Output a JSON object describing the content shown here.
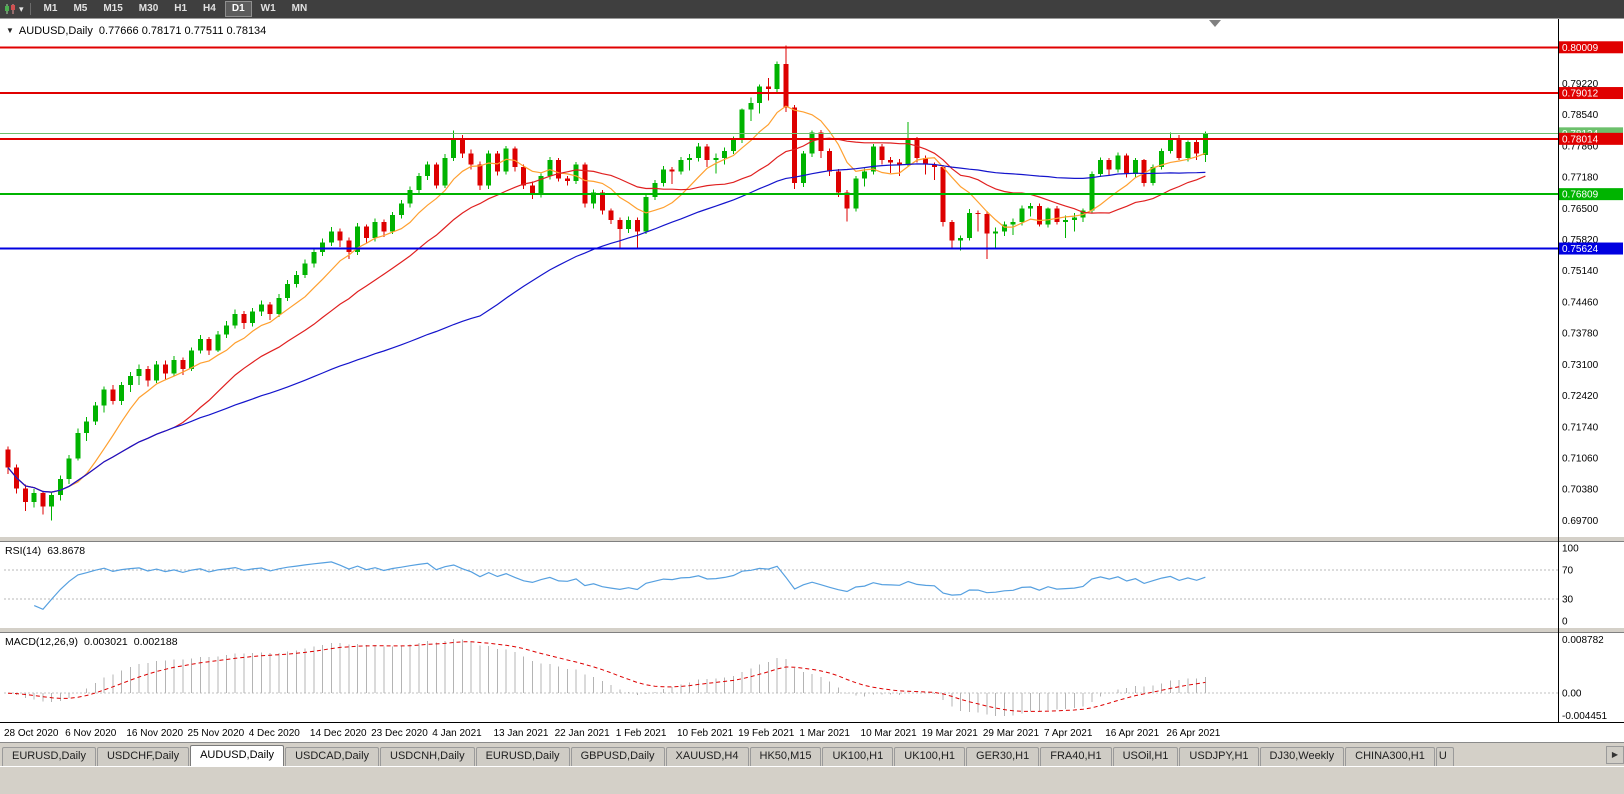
{
  "toolbar": {
    "timeframes": [
      "M1",
      "M5",
      "M15",
      "M30",
      "H1",
      "H4",
      "D1",
      "W1",
      "MN"
    ],
    "active": "D1",
    "dropdown_icon": "▾"
  },
  "header": {
    "collapse_icon": "▼",
    "title": "AUDUSD,Daily",
    "ohlc": "0.77666 0.78171 0.77511 0.78134"
  },
  "tabbar": {
    "scroll_right_icon": "▶",
    "tabs": [
      {
        "label": "EURUSD,Daily"
      },
      {
        "label": "USDCHF,Daily"
      },
      {
        "label": "AUDUSD,Daily",
        "active": true
      },
      {
        "label": "USDCAD,Daily"
      },
      {
        "label": "USDCNH,Daily"
      },
      {
        "label": "EURUSD,Daily"
      },
      {
        "label": "GBPUSD,Daily"
      },
      {
        "label": "XAUUSD,H4"
      },
      {
        "label": "HK50,M15"
      },
      {
        "label": "UK100,H1"
      },
      {
        "label": "UK100,H1"
      },
      {
        "label": "GER30,H1"
      },
      {
        "label": "FRA40,H1"
      },
      {
        "label": "USOil,H1"
      },
      {
        "label": "USDJPY,H1"
      },
      {
        "label": "DJ30,Weekly"
      },
      {
        "label": "CHINA300,H1"
      },
      {
        "label": "U",
        "partial": true
      }
    ]
  },
  "chart_data": {
    "type": "candlestick",
    "symbol": "AUDUSD",
    "timeframe": "Daily",
    "ylim": [
      0.6936,
      0.8056
    ],
    "y_axis_labels": [
      "0.79220",
      "0.78540",
      "0.77860",
      "0.77180",
      "0.76500",
      "0.75820",
      "0.75140",
      "0.74460",
      "0.73780",
      "0.73100",
      "0.72420",
      "0.71740",
      "0.71060",
      "0.70380",
      "0.69700"
    ],
    "x_labels": [
      "28 Oct 2020",
      "6 Nov 2020",
      "16 Nov 2020",
      "25 Nov 2020",
      "4 Dec 2020",
      "14 Dec 2020",
      "23 Dec 2020",
      "4 Jan 2021",
      "13 Jan 2021",
      "22 Jan 2021",
      "1 Feb 2021",
      "10 Feb 2021",
      "19 Feb 2021",
      "1 Mar 2021",
      "10 Mar 2021",
      "19 Mar 2021",
      "29 Mar 2021",
      "7 Apr 2021",
      "16 Apr 2021",
      "26 Apr 2021"
    ],
    "x_label_every": 7,
    "colors": {
      "bull": "#00b300",
      "bear": "#dd0000"
    },
    "horizontal_lines": [
      {
        "price": 0.80009,
        "label": "0.80009",
        "color": "#e00000"
      },
      {
        "price": 0.79012,
        "label": "0.79012",
        "color": "#e00000"
      },
      {
        "price": 0.78014,
        "label": "0.78014",
        "color": "#e00000"
      },
      {
        "price": 0.76809,
        "label": "0.76809",
        "color": "#00b400"
      },
      {
        "price": 0.75624,
        "label": "0.75624",
        "color": "#0000e0"
      }
    ],
    "bid_line": {
      "price": 0.78134,
      "label": "0.78134",
      "color": "#6cc06c"
    },
    "indicators": {
      "moving_averages": [
        {
          "period": 8,
          "color": "#ffa030",
          "name": "ma-fast"
        },
        {
          "period": 20,
          "color": "#e02020",
          "name": "ma-medium"
        },
        {
          "period": 55,
          "color": "#1414cc",
          "name": "ma-slow"
        }
      ],
      "rsi": {
        "label": "RSI(14)",
        "value": "63.8678",
        "levels": [
          100,
          70,
          30,
          0
        ],
        "color": "#56a0e0"
      },
      "macd": {
        "label": "MACD(12,26,9)",
        "value_main": "0.003021",
        "value_signal": "0.002188",
        "axis_labels": [
          "0.008782",
          "0.00",
          "-0.004451"
        ],
        "histogram_color": "#b4b4b4",
        "signal_color": "#dd0000"
      }
    },
    "ohlc": [
      [
        0.7125,
        0.7131,
        0.7071,
        0.7085
      ],
      [
        0.7085,
        0.7092,
        0.7029,
        0.704
      ],
      [
        0.704,
        0.7048,
        0.6991,
        0.701
      ],
      [
        0.701,
        0.7038,
        0.6998,
        0.703
      ],
      [
        0.703,
        0.7034,
        0.6983,
        0.7
      ],
      [
        0.7,
        0.7031,
        0.697,
        0.7025
      ],
      [
        0.7025,
        0.7068,
        0.7013,
        0.706
      ],
      [
        0.706,
        0.7112,
        0.7049,
        0.7105
      ],
      [
        0.7105,
        0.717,
        0.71,
        0.716
      ],
      [
        0.716,
        0.7195,
        0.7143,
        0.7185
      ],
      [
        0.7185,
        0.7228,
        0.7178,
        0.722
      ],
      [
        0.722,
        0.7262,
        0.7205,
        0.7255
      ],
      [
        0.7255,
        0.7265,
        0.7222,
        0.723
      ],
      [
        0.723,
        0.7272,
        0.7221,
        0.7265
      ],
      [
        0.7265,
        0.7293,
        0.725,
        0.7285
      ],
      [
        0.7285,
        0.731,
        0.7265,
        0.73
      ],
      [
        0.73,
        0.7306,
        0.7262,
        0.7275
      ],
      [
        0.7275,
        0.7317,
        0.7269,
        0.731
      ],
      [
        0.731,
        0.7318,
        0.7276,
        0.729
      ],
      [
        0.729,
        0.7328,
        0.7285,
        0.732
      ],
      [
        0.732,
        0.7325,
        0.7287,
        0.73
      ],
      [
        0.73,
        0.7347,
        0.7296,
        0.734
      ],
      [
        0.734,
        0.7374,
        0.7334,
        0.7365
      ],
      [
        0.7365,
        0.737,
        0.733,
        0.734
      ],
      [
        0.734,
        0.7383,
        0.7337,
        0.7375
      ],
      [
        0.7375,
        0.7405,
        0.7367,
        0.7395
      ],
      [
        0.7395,
        0.743,
        0.7388,
        0.742
      ],
      [
        0.742,
        0.7426,
        0.7387,
        0.74
      ],
      [
        0.74,
        0.7433,
        0.7393,
        0.7425
      ],
      [
        0.7425,
        0.7449,
        0.7415,
        0.744
      ],
      [
        0.744,
        0.7446,
        0.7407,
        0.742
      ],
      [
        0.742,
        0.7463,
        0.7413,
        0.7455
      ],
      [
        0.7455,
        0.7494,
        0.7448,
        0.7485
      ],
      [
        0.7485,
        0.7513,
        0.7477,
        0.7505
      ],
      [
        0.7505,
        0.7539,
        0.7498,
        0.753
      ],
      [
        0.753,
        0.7564,
        0.7521,
        0.7555
      ],
      [
        0.7555,
        0.7584,
        0.7546,
        0.7575
      ],
      [
        0.7575,
        0.7609,
        0.7568,
        0.76
      ],
      [
        0.76,
        0.7606,
        0.7566,
        0.758
      ],
      [
        0.758,
        0.7586,
        0.754,
        0.7555
      ],
      [
        0.7555,
        0.7618,
        0.7548,
        0.761
      ],
      [
        0.761,
        0.7615,
        0.7573,
        0.7585
      ],
      [
        0.7585,
        0.7628,
        0.7578,
        0.762
      ],
      [
        0.762,
        0.7626,
        0.7588,
        0.76
      ],
      [
        0.76,
        0.7642,
        0.7594,
        0.7635
      ],
      [
        0.7635,
        0.7668,
        0.7628,
        0.766
      ],
      [
        0.766,
        0.7698,
        0.7652,
        0.769
      ],
      [
        0.769,
        0.7727,
        0.7683,
        0.772
      ],
      [
        0.772,
        0.7752,
        0.7712,
        0.7745
      ],
      [
        0.7745,
        0.775,
        0.7693,
        0.77
      ],
      [
        0.77,
        0.7768,
        0.7694,
        0.776
      ],
      [
        0.776,
        0.782,
        0.7753,
        0.78
      ],
      [
        0.78,
        0.781,
        0.776,
        0.777
      ],
      [
        0.777,
        0.7778,
        0.7735,
        0.7745
      ],
      [
        0.7745,
        0.7752,
        0.769,
        0.77
      ],
      [
        0.77,
        0.7776,
        0.7692,
        0.777
      ],
      [
        0.777,
        0.7775,
        0.7722,
        0.773
      ],
      [
        0.773,
        0.7786,
        0.7724,
        0.778
      ],
      [
        0.778,
        0.7785,
        0.773,
        0.774
      ],
      [
        0.774,
        0.7746,
        0.7692,
        0.77
      ],
      [
        0.77,
        0.7708,
        0.767,
        0.768
      ],
      [
        0.768,
        0.7726,
        0.7674,
        0.772
      ],
      [
        0.772,
        0.7762,
        0.7713,
        0.7755
      ],
      [
        0.7755,
        0.776,
        0.7708,
        0.7715
      ],
      [
        0.7715,
        0.772,
        0.77,
        0.771
      ],
      [
        0.771,
        0.7751,
        0.7703,
        0.7745
      ],
      [
        0.7745,
        0.775,
        0.7652,
        0.766
      ],
      [
        0.766,
        0.7691,
        0.765,
        0.7685
      ],
      [
        0.7685,
        0.769,
        0.7637,
        0.7645
      ],
      [
        0.7645,
        0.765,
        0.7616,
        0.7625
      ],
      [
        0.7625,
        0.763,
        0.7565,
        0.7605
      ],
      [
        0.7605,
        0.7632,
        0.7596,
        0.7625
      ],
      [
        0.7625,
        0.763,
        0.756,
        0.76
      ],
      [
        0.76,
        0.7682,
        0.7594,
        0.7675
      ],
      [
        0.7675,
        0.7712,
        0.7668,
        0.7705
      ],
      [
        0.7705,
        0.7742,
        0.7698,
        0.7735
      ],
      [
        0.7735,
        0.774,
        0.7703,
        0.773
      ],
      [
        0.773,
        0.7762,
        0.7724,
        0.7755
      ],
      [
        0.7755,
        0.7768,
        0.7732,
        0.776
      ],
      [
        0.776,
        0.7792,
        0.7752,
        0.7785
      ],
      [
        0.7785,
        0.779,
        0.774,
        0.7755
      ],
      [
        0.7755,
        0.777,
        0.7726,
        0.776
      ],
      [
        0.776,
        0.7783,
        0.7745,
        0.7775
      ],
      [
        0.7775,
        0.7806,
        0.7768,
        0.78
      ],
      [
        0.78,
        0.7868,
        0.7792,
        0.7865
      ],
      [
        0.7865,
        0.7892,
        0.784,
        0.788
      ],
      [
        0.788,
        0.792,
        0.7857,
        0.7915
      ],
      [
        0.7915,
        0.7934,
        0.7885,
        0.791
      ],
      [
        0.791,
        0.797,
        0.79,
        0.7965
      ],
      [
        0.7965,
        0.8005,
        0.786,
        0.787
      ],
      [
        0.787,
        0.7875,
        0.7692,
        0.7705
      ],
      [
        0.7705,
        0.7775,
        0.7697,
        0.777
      ],
      [
        0.777,
        0.782,
        0.7762,
        0.7815
      ],
      [
        0.7815,
        0.7821,
        0.776,
        0.7775
      ],
      [
        0.7775,
        0.778,
        0.772,
        0.773
      ],
      [
        0.773,
        0.7736,
        0.7675,
        0.7685
      ],
      [
        0.7685,
        0.769,
        0.7621,
        0.765
      ],
      [
        0.765,
        0.772,
        0.7643,
        0.7715
      ],
      [
        0.7715,
        0.7737,
        0.7698,
        0.773
      ],
      [
        0.773,
        0.779,
        0.7724,
        0.7785
      ],
      [
        0.7785,
        0.779,
        0.7745,
        0.7755
      ],
      [
        0.7755,
        0.7762,
        0.7727,
        0.775
      ],
      [
        0.775,
        0.7757,
        0.772,
        0.7745
      ],
      [
        0.7745,
        0.7838,
        0.774,
        0.78
      ],
      [
        0.78,
        0.7805,
        0.775,
        0.776
      ],
      [
        0.776,
        0.7765,
        0.7724,
        0.7745
      ],
      [
        0.7745,
        0.775,
        0.7712,
        0.774
      ],
      [
        0.774,
        0.7744,
        0.761,
        0.762
      ],
      [
        0.762,
        0.7625,
        0.7565,
        0.758
      ],
      [
        0.758,
        0.7591,
        0.7558,
        0.7585
      ],
      [
        0.7585,
        0.7648,
        0.758,
        0.764
      ],
      [
        0.764,
        0.7645,
        0.76,
        0.7638
      ],
      [
        0.7638,
        0.7644,
        0.754,
        0.7595
      ],
      [
        0.7595,
        0.7608,
        0.7563,
        0.76
      ],
      [
        0.76,
        0.7621,
        0.759,
        0.7615
      ],
      [
        0.7615,
        0.7628,
        0.7592,
        0.762
      ],
      [
        0.762,
        0.7656,
        0.7613,
        0.765
      ],
      [
        0.765,
        0.7662,
        0.7632,
        0.7655
      ],
      [
        0.7655,
        0.766,
        0.761,
        0.7615
      ],
      [
        0.7615,
        0.7652,
        0.7608,
        0.765
      ],
      [
        0.765,
        0.7655,
        0.7615,
        0.762
      ],
      [
        0.762,
        0.7634,
        0.7585,
        0.7625
      ],
      [
        0.7625,
        0.764,
        0.76,
        0.763
      ],
      [
        0.763,
        0.765,
        0.762,
        0.7645
      ],
      [
        0.7645,
        0.773,
        0.764,
        0.7725
      ],
      [
        0.7725,
        0.7761,
        0.7718,
        0.7755
      ],
      [
        0.7755,
        0.776,
        0.772,
        0.7735
      ],
      [
        0.7735,
        0.7772,
        0.7728,
        0.7765
      ],
      [
        0.7765,
        0.777,
        0.7717,
        0.7725
      ],
      [
        0.7725,
        0.776,
        0.7718,
        0.7755
      ],
      [
        0.7755,
        0.7758,
        0.7698,
        0.7705
      ],
      [
        0.7705,
        0.7745,
        0.77,
        0.774
      ],
      [
        0.774,
        0.778,
        0.7735,
        0.7775
      ],
      [
        0.7775,
        0.7815,
        0.777,
        0.78
      ],
      [
        0.78,
        0.781,
        0.7755,
        0.776
      ],
      [
        0.776,
        0.7798,
        0.7752,
        0.7795
      ],
      [
        0.7795,
        0.78,
        0.7755,
        0.777
      ],
      [
        0.77666,
        0.78171,
        0.77511,
        0.78134
      ]
    ]
  }
}
